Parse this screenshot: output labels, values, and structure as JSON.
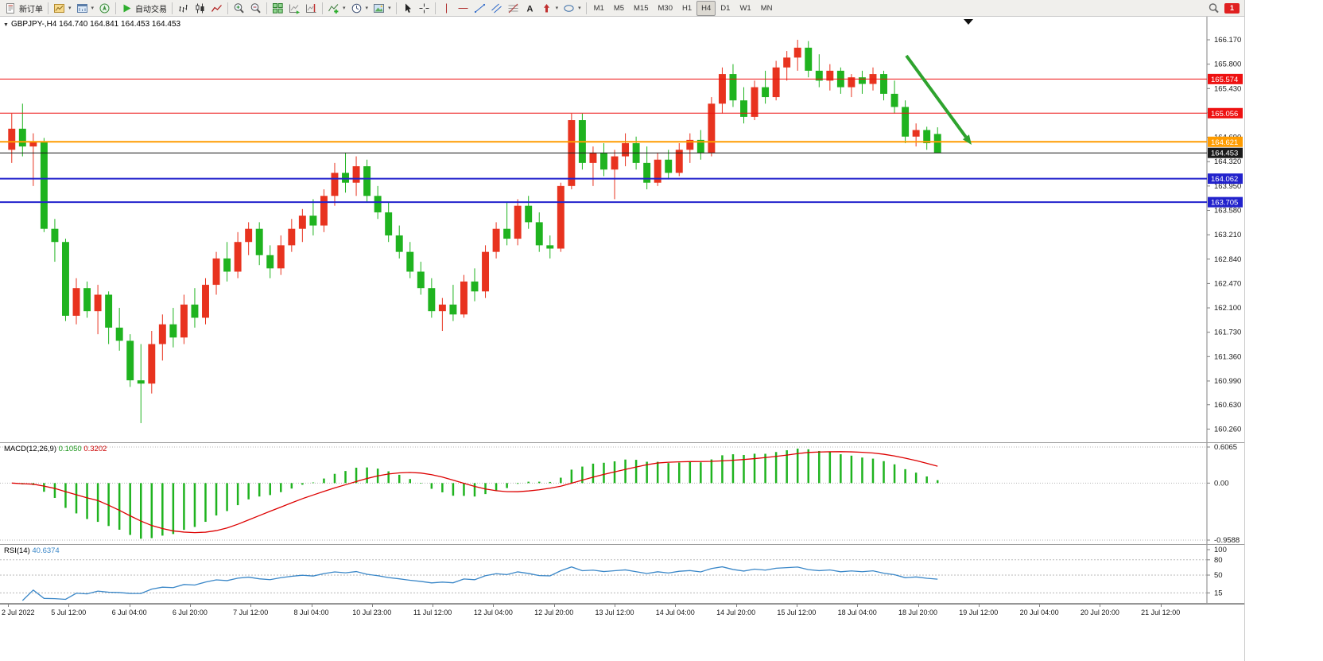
{
  "toolbar": {
    "new_order_label": "新订单",
    "auto_trading_label": "自动交易",
    "timeframes": [
      "M1",
      "M5",
      "M15",
      "M30",
      "H1",
      "H4",
      "D1",
      "W1",
      "MN"
    ],
    "active_timeframe": "H4",
    "notification_badge": "1",
    "icon_names": [
      "new-order",
      "new-chart",
      "profiles",
      "navigator",
      "auto-trading-play",
      "bars-chart",
      "candlestick-chart",
      "line-chart",
      "zoom-in",
      "zoom-out",
      "tile-windows",
      "auto-scroll",
      "chart-shift",
      "indicators",
      "periods",
      "templates",
      "cursor",
      "crosshair",
      "vertical-line",
      "horizontal-line",
      "trendline",
      "equidistant-channel",
      "fibonacci",
      "text",
      "arrows",
      "shapes",
      "search",
      "notification-badge"
    ]
  },
  "chart_data": {
    "type": "candlestick",
    "symbol": "GBPJPY-,H4",
    "ohlc_readout": "164.740 164.841 164.453 164.453",
    "up_color": "#e8331f",
    "down_color": "#1fb31f",
    "price_axis": {
      "top_price": 166.46,
      "bottom_price": 160.12,
      "ticks": [
        "166.170",
        "165.800",
        "165.430",
        "165.060",
        "164.690",
        "164.320",
        "163.950",
        "163.580",
        "163.210",
        "162.840",
        "162.470",
        "162.100",
        "161.730",
        "161.360",
        "160.990",
        "160.630",
        "160.260"
      ]
    },
    "hlines": [
      {
        "price": 165.574,
        "label": "165.574",
        "color": "#ee1111",
        "width": 1
      },
      {
        "price": 165.056,
        "label": "165.056",
        "color": "#ee1111",
        "width": 1
      },
      {
        "price": 164.621,
        "label": "164.621",
        "color": "#ff9c00",
        "width": 2
      },
      {
        "price": 164.453,
        "label": "164.453",
        "color": "#1a1a1a",
        "width": 1
      },
      {
        "price": 164.062,
        "label": "164.062",
        "color": "#2222cc",
        "width": 2
      },
      {
        "price": 163.705,
        "label": "163.705",
        "color": "#2222cc",
        "width": 2
      }
    ],
    "annotation_arrow": {
      "color": "#2ea32e"
    },
    "candles": [
      [
        164.5,
        165.05,
        164.3,
        164.82
      ],
      [
        164.82,
        165.2,
        164.4,
        164.55
      ],
      [
        164.55,
        164.75,
        163.95,
        164.62
      ],
      [
        164.62,
        164.68,
        163.25,
        163.3
      ],
      [
        163.3,
        163.45,
        162.8,
        163.1
      ],
      [
        163.1,
        163.15,
        161.9,
        161.98
      ],
      [
        161.98,
        162.55,
        161.85,
        162.4
      ],
      [
        162.4,
        162.5,
        161.95,
        162.05
      ],
      [
        162.05,
        162.45,
        161.7,
        162.3
      ],
      [
        162.3,
        162.35,
        161.55,
        161.8
      ],
      [
        161.8,
        162.1,
        161.45,
        161.6
      ],
      [
        161.6,
        161.7,
        160.9,
        161.0
      ],
      [
        161.0,
        161.55,
        160.35,
        160.95
      ],
      [
        160.95,
        161.75,
        160.8,
        161.55
      ],
      [
        161.55,
        162.0,
        161.3,
        161.85
      ],
      [
        161.85,
        162.1,
        161.5,
        161.65
      ],
      [
        161.65,
        162.3,
        161.55,
        162.15
      ],
      [
        162.15,
        162.4,
        161.8,
        161.95
      ],
      [
        161.95,
        162.55,
        161.85,
        162.45
      ],
      [
        162.45,
        162.95,
        162.3,
        162.85
      ],
      [
        162.85,
        163.1,
        162.5,
        162.65
      ],
      [
        162.65,
        163.25,
        162.55,
        163.1
      ],
      [
        163.1,
        163.4,
        162.9,
        163.3
      ],
      [
        163.3,
        163.4,
        162.75,
        162.9
      ],
      [
        162.9,
        163.05,
        162.55,
        162.7
      ],
      [
        162.7,
        163.2,
        162.6,
        163.05
      ],
      [
        163.05,
        163.45,
        162.95,
        163.3
      ],
      [
        163.3,
        163.6,
        163.1,
        163.5
      ],
      [
        163.5,
        163.75,
        163.2,
        163.35
      ],
      [
        163.35,
        163.9,
        163.25,
        163.8
      ],
      [
        163.8,
        164.3,
        163.65,
        164.15
      ],
      [
        164.15,
        164.45,
        163.85,
        164.0
      ],
      [
        164.0,
        164.4,
        163.8,
        164.25
      ],
      [
        164.25,
        164.35,
        163.7,
        163.8
      ],
      [
        163.8,
        163.95,
        163.45,
        163.55
      ],
      [
        163.55,
        163.7,
        163.1,
        163.2
      ],
      [
        163.2,
        163.35,
        162.85,
        162.95
      ],
      [
        162.95,
        163.1,
        162.55,
        162.65
      ],
      [
        162.65,
        162.8,
        162.3,
        162.4
      ],
      [
        162.4,
        162.55,
        161.95,
        162.05
      ],
      [
        162.05,
        162.25,
        161.75,
        162.15
      ],
      [
        162.15,
        162.45,
        161.9,
        162.0
      ],
      [
        162.0,
        162.6,
        161.95,
        162.5
      ],
      [
        162.5,
        162.7,
        162.2,
        162.35
      ],
      [
        162.35,
        163.05,
        162.25,
        162.95
      ],
      [
        162.95,
        163.4,
        162.85,
        163.3
      ],
      [
        163.3,
        163.7,
        163.05,
        163.15
      ],
      [
        163.15,
        163.75,
        163.05,
        163.65
      ],
      [
        163.65,
        163.8,
        163.3,
        163.4
      ],
      [
        163.4,
        163.55,
        162.95,
        163.05
      ],
      [
        163.05,
        163.2,
        162.85,
        163.0
      ],
      [
        163.0,
        164.0,
        162.95,
        163.95
      ],
      [
        163.95,
        165.05,
        163.9,
        164.95
      ],
      [
        164.95,
        165.05,
        164.2,
        164.3
      ],
      [
        164.3,
        164.55,
        163.95,
        164.45
      ],
      [
        164.45,
        164.6,
        164.1,
        164.2
      ],
      [
        164.2,
        164.5,
        163.75,
        164.4
      ],
      [
        164.4,
        164.75,
        164.25,
        164.6
      ],
      [
        164.6,
        164.7,
        164.2,
        164.3
      ],
      [
        164.3,
        164.55,
        163.9,
        164.0
      ],
      [
        164.0,
        164.45,
        163.95,
        164.35
      ],
      [
        164.35,
        164.5,
        164.05,
        164.15
      ],
      [
        164.15,
        164.6,
        164.1,
        164.5
      ],
      [
        164.5,
        164.75,
        164.3,
        164.65
      ],
      [
        164.65,
        164.8,
        164.35,
        164.45
      ],
      [
        164.45,
        165.3,
        164.4,
        165.2
      ],
      [
        165.2,
        165.75,
        165.05,
        165.65
      ],
      [
        165.65,
        165.8,
        165.15,
        165.25
      ],
      [
        165.25,
        165.45,
        164.9,
        165.0
      ],
      [
        165.0,
        165.55,
        164.95,
        165.45
      ],
      [
        165.45,
        165.7,
        165.2,
        165.3
      ],
      [
        165.3,
        165.85,
        165.25,
        165.75
      ],
      [
        165.75,
        166.0,
        165.55,
        165.9
      ],
      [
        165.9,
        166.17,
        165.7,
        166.05
      ],
      [
        166.05,
        166.15,
        165.6,
        165.7
      ],
      [
        165.7,
        165.95,
        165.45,
        165.55
      ],
      [
        165.55,
        165.8,
        165.4,
        165.7
      ],
      [
        165.7,
        165.75,
        165.35,
        165.45
      ],
      [
        165.45,
        165.65,
        165.3,
        165.6
      ],
      [
        165.6,
        165.7,
        165.35,
        165.5
      ],
      [
        165.5,
        165.75,
        165.4,
        165.65
      ],
      [
        165.65,
        165.7,
        165.25,
        165.35
      ],
      [
        165.35,
        165.55,
        165.05,
        165.15
      ],
      [
        165.15,
        165.25,
        164.6,
        164.7
      ],
      [
        164.7,
        164.9,
        164.55,
        164.8
      ],
      [
        164.8,
        164.85,
        164.5,
        164.6
      ],
      [
        164.74,
        164.841,
        164.453,
        164.453
      ]
    ],
    "time_axis": [
      "2 Jul 2022",
      "5 Jul 12:00",
      "6 Jul 04:00",
      "6 Jul 20:00",
      "7 Jul 12:00",
      "8 Jul 04:00",
      "10 Jul 23:00",
      "11 Jul 12:00",
      "12 Jul 04:00",
      "12 Jul 20:00",
      "13 Jul 12:00",
      "14 Jul 04:00",
      "14 Jul 20:00",
      "15 Jul 12:00",
      "18 Jul 04:00",
      "18 Jul 20:00",
      "19 Jul 12:00",
      "20 Jul 04:00",
      "20 Jul 20:00",
      "21 Jul 12:00"
    ],
    "macd": {
      "name": "MACD(12,26,9)",
      "value_main": "0.1050",
      "value_signal": "0.3202",
      "fast": 12,
      "slow": 26,
      "signal": 9,
      "scale_max": 0.6065,
      "scale_min": -0.9588,
      "scale_labels": [
        "0.6065",
        "0.00",
        "-0.9588"
      ],
      "histogram_color": "#1fb31f",
      "signal_color": "#dd0000"
    },
    "rsi": {
      "name": "RSI(14)",
      "value": "40.6374",
      "period": 14,
      "levels": [
        80,
        50,
        15
      ],
      "scale_labels": [
        "100",
        "80",
        "50",
        "15"
      ],
      "line_color": "#3a87c8"
    }
  }
}
